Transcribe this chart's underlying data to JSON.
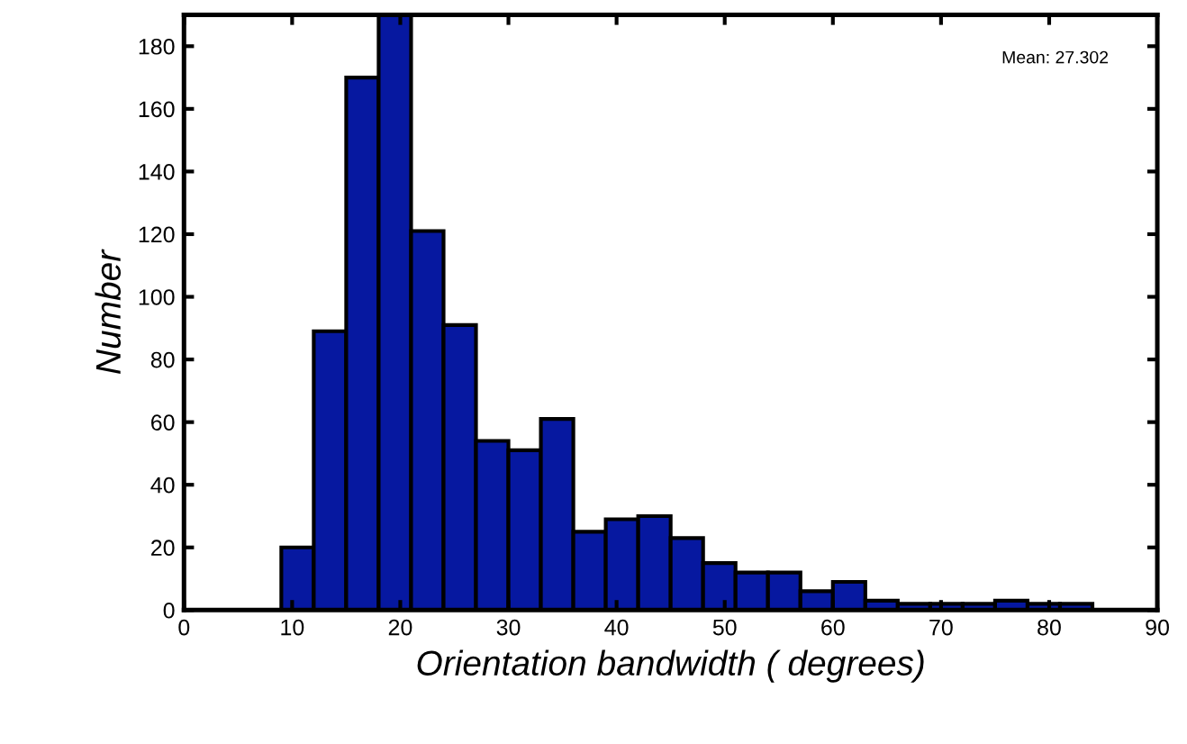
{
  "chart_data": {
    "type": "histogram",
    "xlabel": "Orientation bandwidth ( degrees)",
    "ylabel": "Number",
    "bins": [
      9,
      12,
      15,
      18,
      21,
      24,
      27,
      30,
      33,
      36,
      39,
      42,
      45,
      48,
      51,
      54,
      57,
      60,
      63,
      66,
      69,
      72,
      75,
      78,
      81,
      84,
      87
    ],
    "values": [
      20,
      89,
      170,
      190,
      121,
      91,
      54,
      51,
      61,
      25,
      29,
      30,
      23,
      15,
      12,
      12,
      6,
      9,
      3,
      2,
      2,
      2,
      3,
      2,
      2,
      null
    ],
    "color": "#0618a0",
    "xlim": [
      0,
      90
    ],
    "xticks": [
      0,
      10,
      20,
      30,
      40,
      50,
      60,
      70,
      80,
      90
    ],
    "ylim": [
      0,
      190
    ],
    "yticks": [
      0,
      20,
      40,
      60,
      80,
      100,
      120,
      140,
      160,
      180
    ],
    "grid": false,
    "annotations": [
      "Mean: 27.302"
    ]
  }
}
